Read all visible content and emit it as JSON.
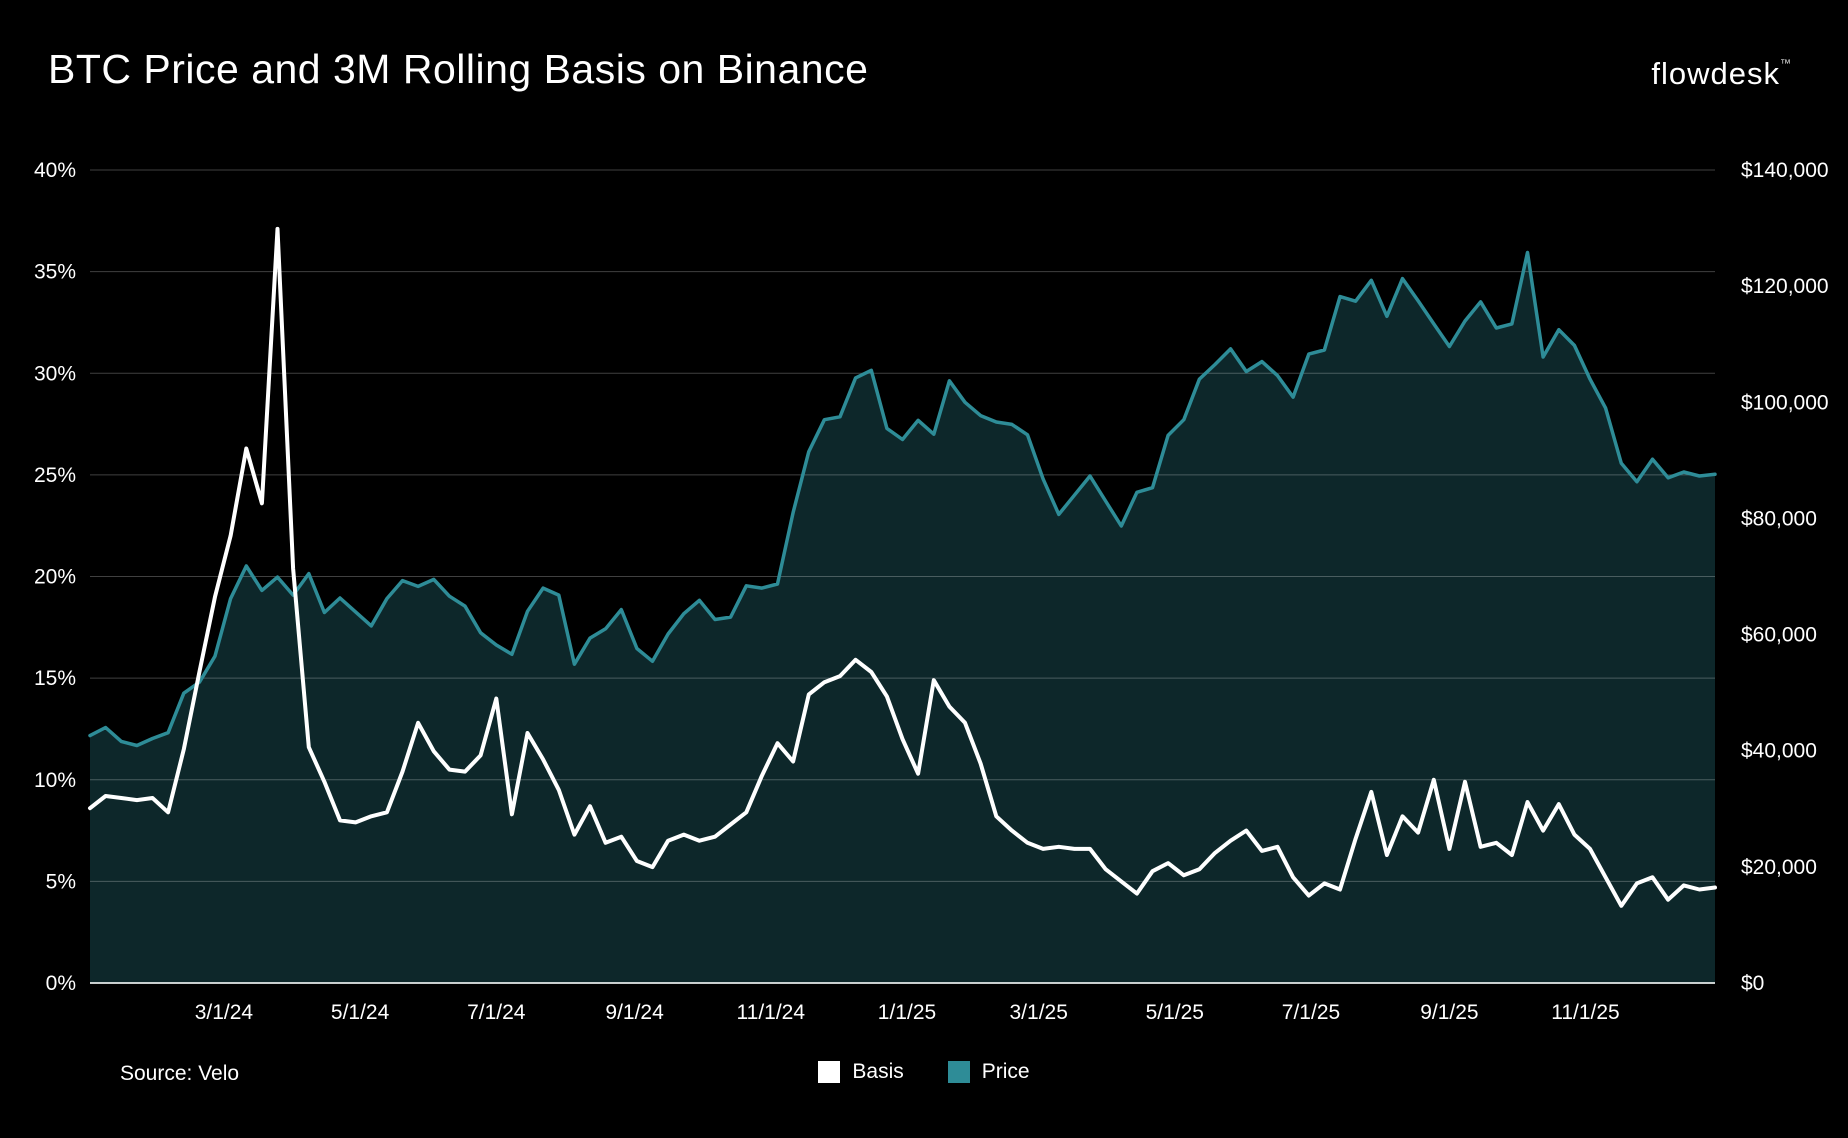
{
  "title": "BTC Price and 3M Rolling Basis on Binance",
  "logo": {
    "text": "flowdesk",
    "tm": "™"
  },
  "source": "Source: Velo",
  "legend": [
    {
      "label": "Basis",
      "color": "#ffffff"
    },
    {
      "label": "Price",
      "color": "#2e8c97"
    }
  ],
  "colors": {
    "background": "#000000",
    "basis_line": "#ffffff",
    "price_line": "#2e8c97",
    "price_fill": "#0d272a",
    "gridline": "rgba(255,255,255,0.25)",
    "axis_line": "rgba(235,240,240,0.85)",
    "tick_text": "#ffffff"
  },
  "chart_data": {
    "type": "line",
    "title": "BTC Price and 3M Rolling Basis on Binance",
    "grid": true,
    "legend_position": "bottom-center",
    "left_axis": {
      "unit": "%",
      "min": 0,
      "max": 40,
      "tick_values": [
        0,
        5,
        10,
        15,
        20,
        25,
        30,
        35,
        40
      ],
      "tick_labels": [
        "0%",
        "5%",
        "10%",
        "15%",
        "20%",
        "25%",
        "30%",
        "35%",
        "40%"
      ]
    },
    "right_axis": {
      "unit": "USD",
      "min": 0,
      "max": 140000,
      "tick_values": [
        0,
        20000,
        40000,
        60000,
        80000,
        100000,
        120000,
        140000
      ],
      "tick_labels": [
        "$0",
        "$20,000",
        "$40,000",
        "$60,000",
        "$80,000",
        "$100,000",
        "$120,000",
        "$140,000"
      ]
    },
    "x_ticks": [
      {
        "date": "2024-03-01",
        "label": "3/1/24"
      },
      {
        "date": "2024-05-01",
        "label": "5/1/24"
      },
      {
        "date": "2024-07-01",
        "label": "7/1/24"
      },
      {
        "date": "2024-09-01",
        "label": "9/1/24"
      },
      {
        "date": "2024-11-01",
        "label": "11/1/24"
      },
      {
        "date": "2025-01-01",
        "label": "1/1/25"
      },
      {
        "date": "2025-03-01",
        "label": "3/1/25"
      },
      {
        "date": "2025-05-01",
        "label": "5/1/25"
      },
      {
        "date": "2025-07-01",
        "label": "7/1/25"
      },
      {
        "date": "2025-09-01",
        "label": "9/1/25"
      },
      {
        "date": "2025-11-01",
        "label": "11/1/25"
      }
    ],
    "x": [
      "2024-01-01",
      "2024-01-08",
      "2024-01-15",
      "2024-01-22",
      "2024-01-29",
      "2024-02-05",
      "2024-02-12",
      "2024-02-19",
      "2024-02-26",
      "2024-03-04",
      "2024-03-11",
      "2024-03-18",
      "2024-03-25",
      "2024-04-01",
      "2024-04-08",
      "2024-04-15",
      "2024-04-22",
      "2024-04-29",
      "2024-05-06",
      "2024-05-13",
      "2024-05-20",
      "2024-05-27",
      "2024-06-03",
      "2024-06-10",
      "2024-06-17",
      "2024-06-24",
      "2024-07-01",
      "2024-07-08",
      "2024-07-15",
      "2024-07-22",
      "2024-07-29",
      "2024-08-05",
      "2024-08-12",
      "2024-08-19",
      "2024-08-26",
      "2024-09-02",
      "2024-09-09",
      "2024-09-16",
      "2024-09-23",
      "2024-09-30",
      "2024-10-07",
      "2024-10-14",
      "2024-10-21",
      "2024-10-28",
      "2024-11-04",
      "2024-11-11",
      "2024-11-18",
      "2024-11-25",
      "2024-12-02",
      "2024-12-09",
      "2024-12-16",
      "2024-12-23",
      "2024-12-30",
      "2025-01-06",
      "2025-01-13",
      "2025-01-20",
      "2025-01-27",
      "2025-02-03",
      "2025-02-10",
      "2025-02-17",
      "2025-02-24",
      "2025-03-03",
      "2025-03-10",
      "2025-03-17",
      "2025-03-24",
      "2025-03-31",
      "2025-04-07",
      "2025-04-14",
      "2025-04-21",
      "2025-04-28",
      "2025-05-05",
      "2025-05-12",
      "2025-05-19",
      "2025-05-26",
      "2025-06-02",
      "2025-06-09",
      "2025-06-16",
      "2025-06-23",
      "2025-06-30",
      "2025-07-07",
      "2025-07-14",
      "2025-07-21",
      "2025-07-28",
      "2025-08-04",
      "2025-08-11",
      "2025-08-18",
      "2025-08-25",
      "2025-09-01",
      "2025-09-08",
      "2025-09-15",
      "2025-09-22",
      "2025-09-29",
      "2025-10-06",
      "2025-10-13",
      "2025-10-20",
      "2025-10-27",
      "2025-11-03",
      "2025-11-10",
      "2025-11-17",
      "2025-11-24",
      "2025-12-01",
      "2025-12-08",
      "2025-12-15",
      "2025-12-22",
      "2025-12-29"
    ],
    "series": [
      {
        "name": "Basis",
        "axis": "left",
        "unit": "%",
        "color": "#ffffff",
        "values": [
          8.6,
          9.2,
          9.1,
          9.0,
          9.1,
          8.4,
          11.5,
          15.3,
          19.0,
          22.0,
          26.3,
          23.6,
          37.1,
          20.4,
          11.6,
          9.9,
          8.0,
          7.9,
          8.2,
          8.4,
          10.4,
          12.8,
          11.4,
          10.5,
          10.4,
          11.2,
          14.0,
          8.3,
          12.3,
          11.0,
          9.5,
          7.3,
          8.7,
          6.9,
          7.2,
          6.0,
          5.7,
          7.0,
          7.3,
          7.0,
          7.2,
          7.8,
          8.4,
          10.2,
          11.8,
          10.9,
          14.2,
          14.8,
          15.1,
          15.9,
          15.3,
          14.1,
          12.0,
          10.3,
          14.9,
          13.6,
          12.8,
          10.8,
          8.2,
          7.5,
          6.9,
          6.6,
          6.7,
          6.6,
          6.6,
          5.6,
          5.0,
          4.4,
          5.5,
          5.9,
          5.3,
          5.6,
          6.4,
          7.0,
          7.5,
          6.5,
          6.7,
          5.2,
          4.3,
          4.9,
          4.6,
          7.1,
          9.4,
          6.3,
          8.2,
          7.4,
          10.0,
          6.6,
          9.9,
          6.7,
          6.9,
          6.3,
          8.9,
          7.5,
          8.8,
          7.3,
          6.6,
          5.2,
          3.8,
          4.9,
          5.2,
          4.1,
          4.8,
          4.6,
          4.7
        ]
      },
      {
        "name": "Price",
        "axis": "right",
        "unit": "USD",
        "color": "#2e8c97",
        "fill": "#0d272a",
        "values": [
          42600,
          44000,
          41600,
          40900,
          42100,
          43100,
          49900,
          51800,
          56300,
          66200,
          71800,
          67600,
          69900,
          66800,
          70500,
          63800,
          66300,
          63900,
          61500,
          66200,
          69300,
          68300,
          69500,
          66600,
          64900,
          60300,
          58200,
          56600,
          64000,
          68000,
          66800,
          54900,
          59400,
          61000,
          64300,
          57600,
          55400,
          60100,
          63600,
          65900,
          62600,
          63000,
          68400,
          68000,
          68700,
          81000,
          91500,
          97000,
          97500,
          104200,
          105500,
          95500,
          93600,
          96900,
          94500,
          103700,
          100000,
          97700,
          96600,
          96200,
          94400,
          86800,
          80700,
          84000,
          87300,
          83000,
          78700,
          84500,
          85300,
          94300,
          97000,
          104000,
          106500,
          109200,
          105300,
          107000,
          104600,
          100900,
          108300,
          109000,
          118200,
          117400,
          121000,
          114800,
          121300,
          117500,
          113500,
          109600,
          114000,
          117300,
          112800,
          113500,
          125800,
          107800,
          112500,
          109800,
          104000,
          99000,
          89500,
          86300,
          90200,
          87000,
          88000,
          87300,
          87600
        ]
      }
    ]
  }
}
